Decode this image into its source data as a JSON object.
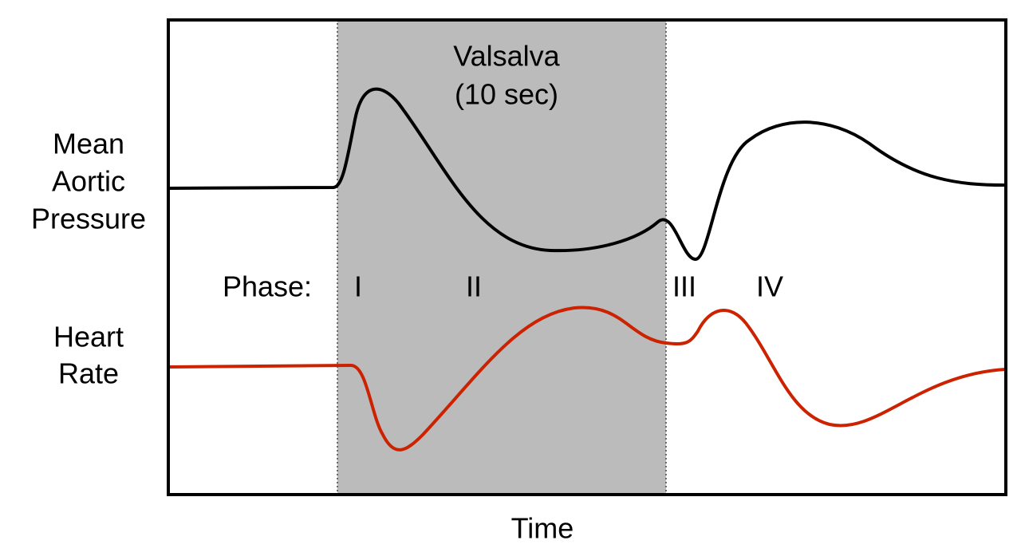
{
  "valsalva": {
    "title": "Valsalva",
    "duration": "(10 sec)"
  },
  "left_labels": {
    "pressure": [
      "Mean",
      "Aortic",
      "Pressure"
    ],
    "heart_rate": [
      "Heart",
      "Rate"
    ]
  },
  "phases": {
    "label": "Phase:",
    "names": [
      "I",
      "II",
      "III",
      "IV"
    ]
  },
  "x_axis_label": "Time"
}
